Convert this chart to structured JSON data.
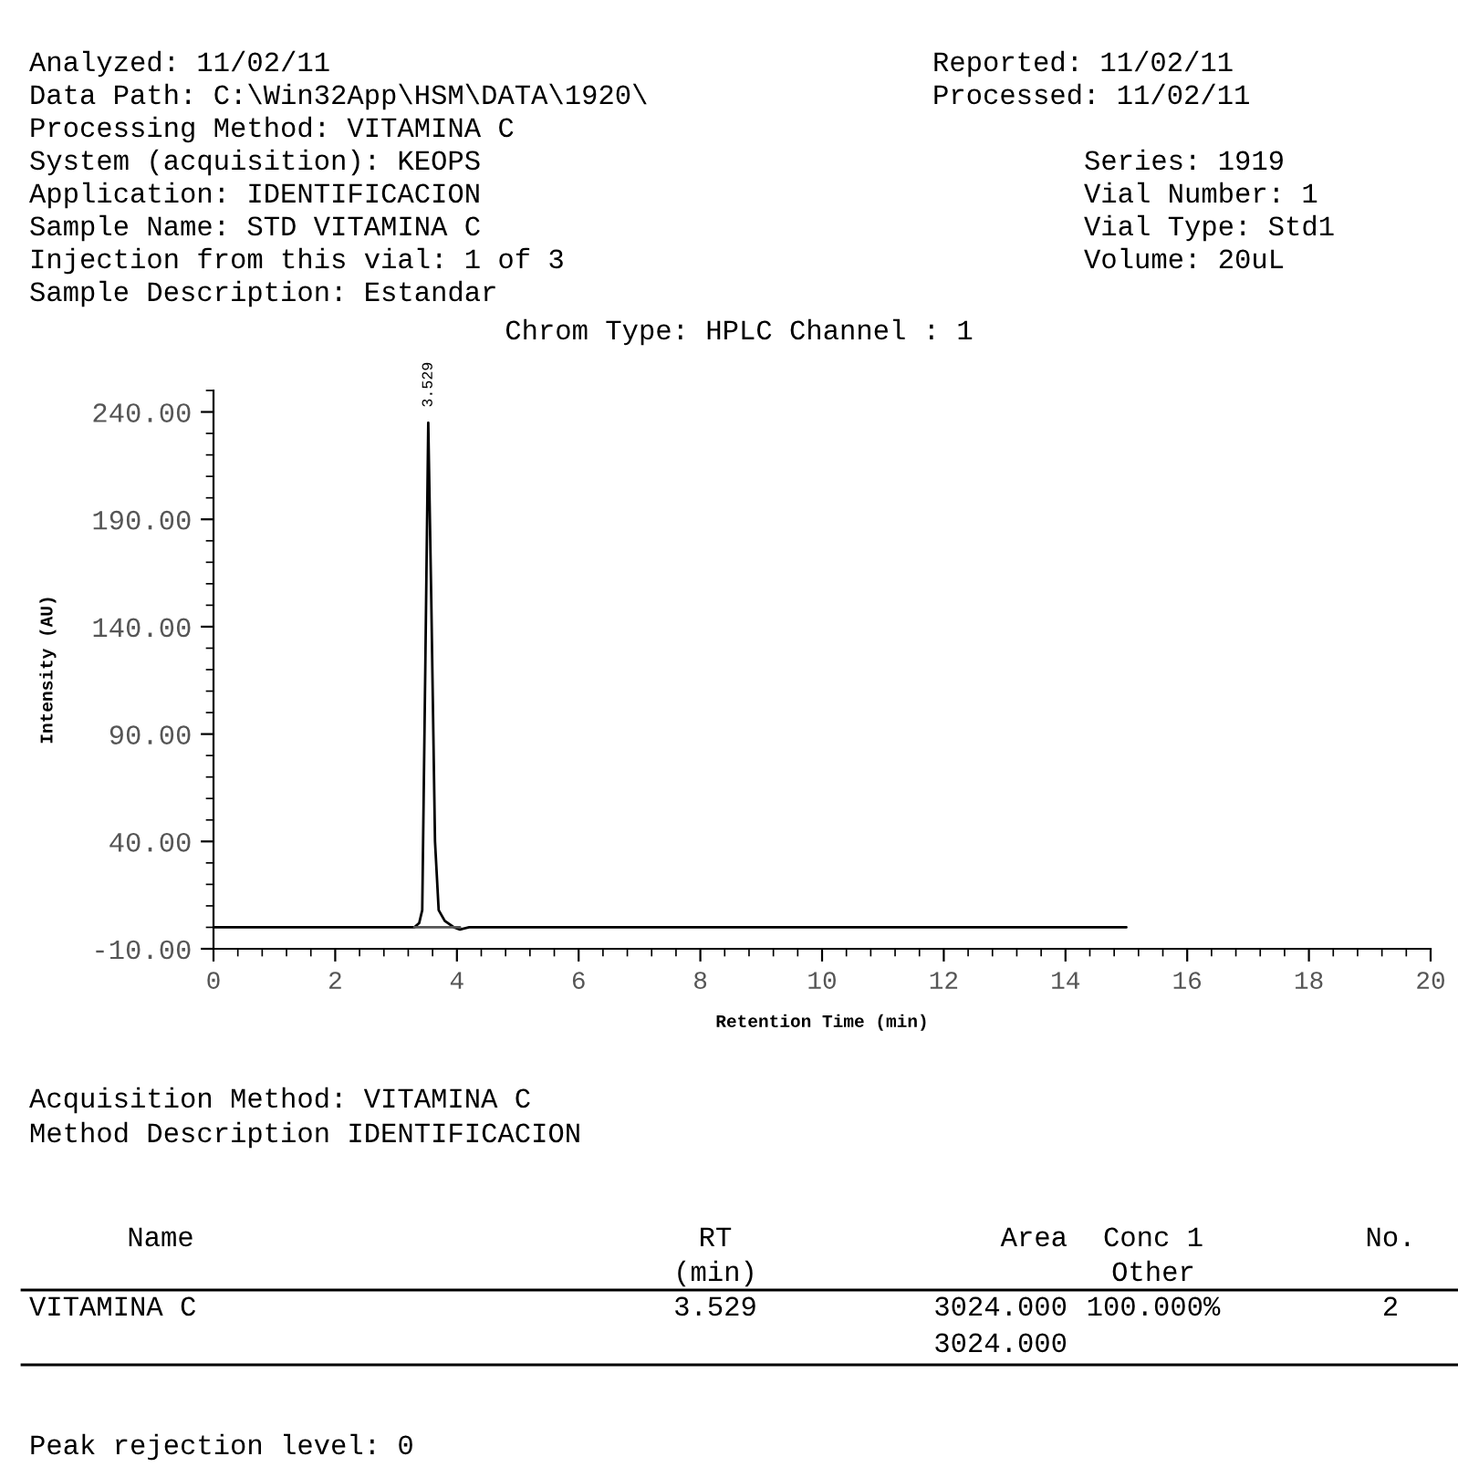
{
  "chart_data": {
    "type": "line",
    "title": "Chrom Type: HPLC Channel : 1",
    "xlabel": "Retention Time (min)",
    "ylabel": "Intensity (AU)",
    "series": [
      {
        "color": "#000000",
        "x": [
          0,
          3.3,
          3.38,
          3.43,
          3.48,
          3.529,
          3.58,
          3.64,
          3.7,
          3.8,
          3.95,
          4.05,
          4.2,
          15
        ],
        "values": [
          0,
          0,
          2,
          8,
          120,
          235,
          150,
          40,
          8,
          3,
          0,
          -1,
          0,
          0
        ]
      },
      {
        "color": "#555555",
        "x": [
          3.3,
          4.05
        ],
        "values": [
          0,
          0
        ]
      }
    ],
    "xlim": [
      0,
      20
    ],
    "xticks": [
      0,
      2,
      4,
      6,
      8,
      10,
      12,
      14,
      16,
      18,
      20
    ],
    "ylim": [
      -10,
      250
    ],
    "yticks": [
      {
        "value": -10,
        "label": "-10.00"
      },
      {
        "value": 40,
        "label": "40.00"
      },
      {
        "value": 90,
        "label": "90.00"
      },
      {
        "value": 140,
        "label": "140.00"
      },
      {
        "value": 190,
        "label": "190.00"
      },
      {
        "value": 240,
        "label": "240.00"
      }
    ],
    "grid": false,
    "legend": false,
    "marker": "none",
    "line_style": "solid",
    "annotations": [
      {
        "text": "3.529",
        "x": 3.529,
        "y": 235
      },
      "Analyzed: 11/02/11",
      "Reported: 11/02/11",
      "Data Path: C:\\Win32App\\HSM\\DATA\\1920\\",
      "Processed: 11/02/11",
      "Processing Method: VITAMINA C",
      "System (acquisition): KEOPS",
      "Series: 1919",
      "Application: IDENTIFICACION",
      "Vial Number: 1",
      "Sample Name: STD VITAMINA C",
      "Vial Type: Std1",
      "Injection from this vial: 1 of 3",
      "Volume: 20uL",
      "Sample Description: Estandar",
      "Acquisition Method: VITAMINA C",
      "Method Description IDENTIFICACION",
      "Name",
      "RT",
      "(min)",
      "Area",
      "Conc 1",
      "Other",
      "No.",
      "VITAMINA C",
      "3.529",
      "3024.000",
      "100.000%",
      "2",
      "3024.000",
      "Peak rejection level: 0"
    ]
  }
}
